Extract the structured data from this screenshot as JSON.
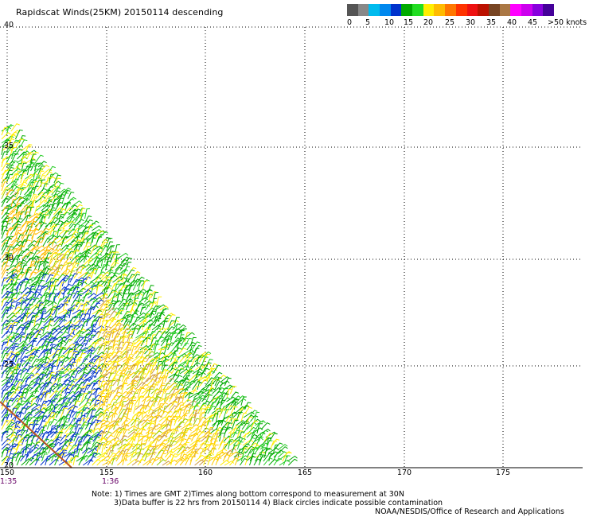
{
  "title": "Rapidscat Winds(25KM) 20150114 descending",
  "legend": {
    "colors": [
      "#555555",
      "#888888",
      "#00bbee",
      "#0088ee",
      "#0033cc",
      "#00aa00",
      "#22dd22",
      "#ffee00",
      "#ffbb00",
      "#ff7700",
      "#ff3300",
      "#ee1111",
      "#bb1100",
      "#774422",
      "#aa7744",
      "#ff00ff",
      "#cc00ee",
      "#8800dd",
      "#440099"
    ],
    "labels": [
      "0",
      "5",
      "10",
      "15",
      "20",
      "25",
      "30",
      "35",
      "40",
      "45",
      ">50 knots"
    ]
  },
  "axes": {
    "lat_ticks": [
      "40",
      "35",
      "30",
      "25",
      "20"
    ],
    "lon_ticks": [
      "150",
      "155",
      "160",
      "165",
      "170",
      "175"
    ]
  },
  "times": [
    "1:35",
    "1:36"
  ],
  "notes": {
    "line1": "Note: 1) Times are GMT 2)Times along bottom correspond to measurement at 30N",
    "line2": "3)Data buffer is 22 hrs from 20150114 4) Black circles indicate possible contamination",
    "credit": "NOAA/NESDIS/Office of Research and Applications"
  }
}
